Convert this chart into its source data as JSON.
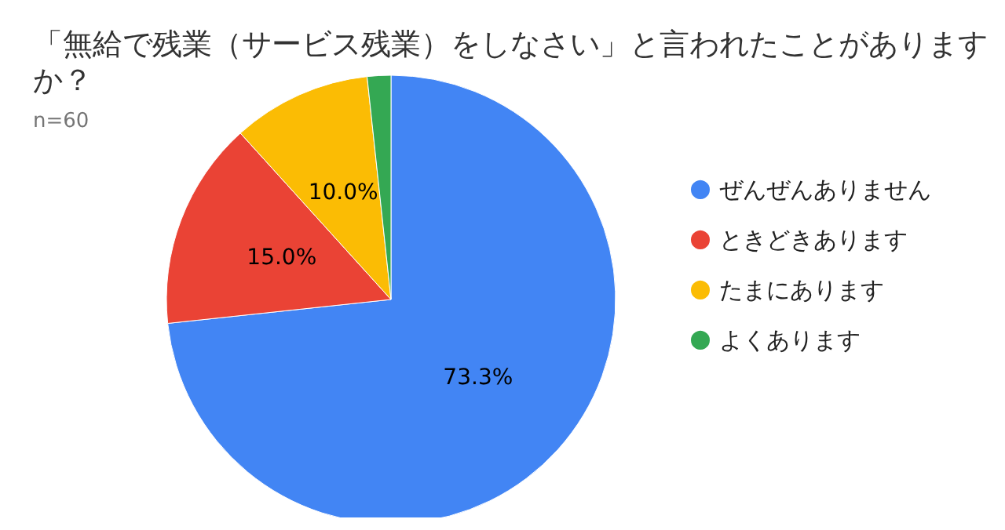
{
  "chart_data": {
    "type": "pie",
    "title": "「無給で残業（サービス残業）をしなさい」と言われたことがありますか？",
    "subtitle": "n=60",
    "categories": [
      "ぜんぜんありません",
      "ときどきあります",
      "たまにあります",
      "よくあります"
    ],
    "values": [
      73.3,
      15.0,
      10.0,
      1.7
    ],
    "colors": [
      "#4285f4",
      "#ea4335",
      "#fbbc04",
      "#34a853"
    ],
    "value_labels": [
      "73.3%",
      "15.0%",
      "10.0%",
      null
    ],
    "legend": "right"
  }
}
